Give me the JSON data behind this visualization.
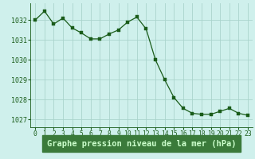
{
  "hours": [
    0,
    1,
    2,
    3,
    4,
    5,
    6,
    7,
    8,
    9,
    10,
    11,
    12,
    13,
    14,
    15,
    16,
    17,
    18,
    19,
    20,
    21,
    22,
    23
  ],
  "pressure": [
    1032.0,
    1032.45,
    1031.8,
    1032.1,
    1031.6,
    1031.35,
    1031.05,
    1031.05,
    1031.3,
    1031.5,
    1031.9,
    1032.15,
    1031.55,
    1030.0,
    1029.0,
    1028.1,
    1027.55,
    1027.3,
    1027.25,
    1027.25,
    1027.4,
    1027.55,
    1027.3,
    1027.2
  ],
  "xlabel": "Graphe pression niveau de la mer (hPa)",
  "bg_color": "#cff0ec",
  "grid_color": "#aad4cc",
  "line_color": "#1a5c1a",
  "marker_color": "#1a5c1a",
  "xlabel_bg_color": "#3a7a3a",
  "xlabel_text_color": "#ccffcc",
  "tick_color": "#1a5c1a",
  "ylim": [
    1026.6,
    1032.85
  ],
  "yticks": [
    1027,
    1028,
    1029,
    1030,
    1031,
    1032
  ],
  "xtick_fontsize": 5.8,
  "ytick_fontsize": 6.0,
  "xlabel_fontsize": 7.5
}
